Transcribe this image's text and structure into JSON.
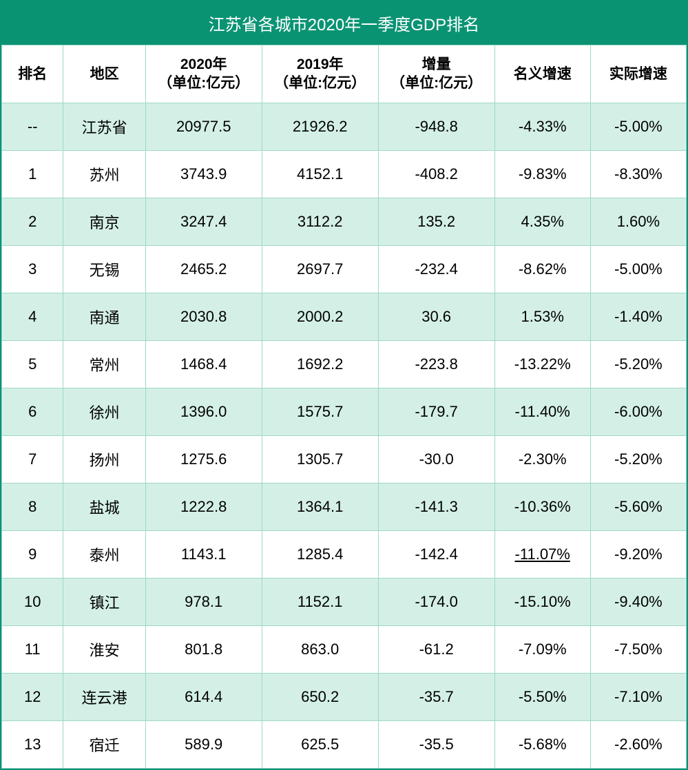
{
  "table": {
    "title": "江苏省各城市2020年一季度GDP排名",
    "title_bg_color": "#0a9373",
    "title_text_color": "#ffffff",
    "border_color": "#9dd8c8",
    "row_alt_bg": "#d4f0e6",
    "row_bg": "#ffffff",
    "font_size_header": 21,
    "font_size_body": 22,
    "columns": [
      {
        "key": "rank",
        "label": "排名"
      },
      {
        "key": "region",
        "label": "地区"
      },
      {
        "key": "y2020",
        "label": "2020年\n（单位:亿元）"
      },
      {
        "key": "y2019",
        "label": "2019年\n（单位:亿元）"
      },
      {
        "key": "diff",
        "label": "增量\n（单位:亿元）"
      },
      {
        "key": "nominal",
        "label": "名义增速"
      },
      {
        "key": "real",
        "label": "实际增速"
      }
    ],
    "rows": [
      {
        "rank": "--",
        "region": "江苏省",
        "y2020": "20977.5",
        "y2019": "21926.2",
        "diff": "-948.8",
        "nominal": "-4.33%",
        "real": "-5.00%"
      },
      {
        "rank": "1",
        "region": "苏州",
        "y2020": "3743.9",
        "y2019": "4152.1",
        "diff": "-408.2",
        "nominal": "-9.83%",
        "real": "-8.30%"
      },
      {
        "rank": "2",
        "region": "南京",
        "y2020": "3247.4",
        "y2019": "3112.2",
        "diff": "135.2",
        "nominal": "4.35%",
        "real": "1.60%"
      },
      {
        "rank": "3",
        "region": "无锡",
        "y2020": "2465.2",
        "y2019": "2697.7",
        "diff": "-232.4",
        "nominal": "-8.62%",
        "real": "-5.00%"
      },
      {
        "rank": "4",
        "region": "南通",
        "y2020": "2030.8",
        "y2019": "2000.2",
        "diff": "30.6",
        "nominal": "1.53%",
        "real": "-1.40%"
      },
      {
        "rank": "5",
        "region": "常州",
        "y2020": "1468.4",
        "y2019": "1692.2",
        "diff": "-223.8",
        "nominal": "-13.22%",
        "real": "-5.20%"
      },
      {
        "rank": "6",
        "region": "徐州",
        "y2020": "1396.0",
        "y2019": "1575.7",
        "diff": "-179.7",
        "nominal": "-11.40%",
        "real": "-6.00%"
      },
      {
        "rank": "7",
        "region": "扬州",
        "y2020": "1275.6",
        "y2019": "1305.7",
        "diff": "-30.0",
        "nominal": "-2.30%",
        "real": "-5.20%"
      },
      {
        "rank": "8",
        "region": "盐城",
        "y2020": "1222.8",
        "y2019": "1364.1",
        "diff": "-141.3",
        "nominal": "-10.36%",
        "real": "-5.60%"
      },
      {
        "rank": "9",
        "region": "泰州",
        "y2020": "1143.1",
        "y2019": "1285.4",
        "diff": "-142.4",
        "nominal": "-11.07%",
        "nominal_underline": true,
        "real": "-9.20%"
      },
      {
        "rank": "10",
        "region": "镇江",
        "y2020": "978.1",
        "y2019": "1152.1",
        "diff": "-174.0",
        "nominal": "-15.10%",
        "real": "-9.40%"
      },
      {
        "rank": "11",
        "region": "淮安",
        "y2020": "801.8",
        "y2019": "863.0",
        "diff": "-61.2",
        "nominal": "-7.09%",
        "real": "-7.50%"
      },
      {
        "rank": "12",
        "region": "连云港",
        "y2020": "614.4",
        "y2019": "650.2",
        "diff": "-35.7",
        "nominal": "-5.50%",
        "real": "-7.10%"
      },
      {
        "rank": "13",
        "region": "宿迁",
        "y2020": "589.9",
        "y2019": "625.5",
        "diff": "-35.5",
        "nominal": "-5.68%",
        "real": "-2.60%"
      }
    ]
  }
}
